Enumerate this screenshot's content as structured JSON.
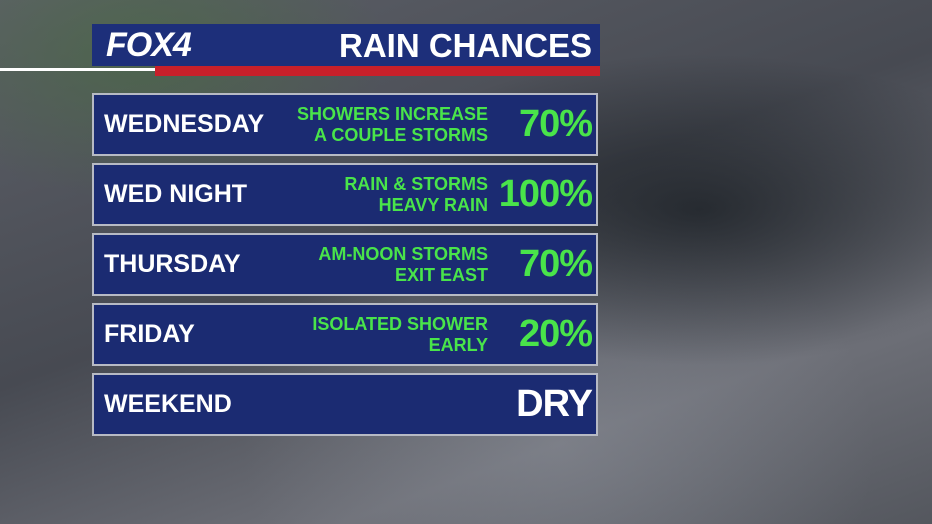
{
  "header": {
    "logo": "FOX4",
    "title": "RAIN CHANCES"
  },
  "rows": [
    {
      "day": "WEDNESDAY",
      "details": [
        "SHOWERS INCREASE",
        "A COUPLE STORMS"
      ],
      "chance": "70%",
      "color": "#49e44a"
    },
    {
      "day": "WED NIGHT",
      "details": [
        "RAIN & STORMS",
        "HEAVY RAIN"
      ],
      "chance": "100%",
      "color": "#49e44a"
    },
    {
      "day": "THURSDAY",
      "details": [
        "AM-NOON STORMS",
        "EXIT EAST"
      ],
      "chance": "70%",
      "color": "#49e44a"
    },
    {
      "day": "FRIDAY",
      "details": [
        "ISOLATED SHOWER",
        "EARLY"
      ],
      "chance": "20%",
      "color": "#49e44a"
    },
    {
      "day": "WEEKEND",
      "details": [],
      "chance": "DRY",
      "color": "#ffffff"
    }
  ]
}
